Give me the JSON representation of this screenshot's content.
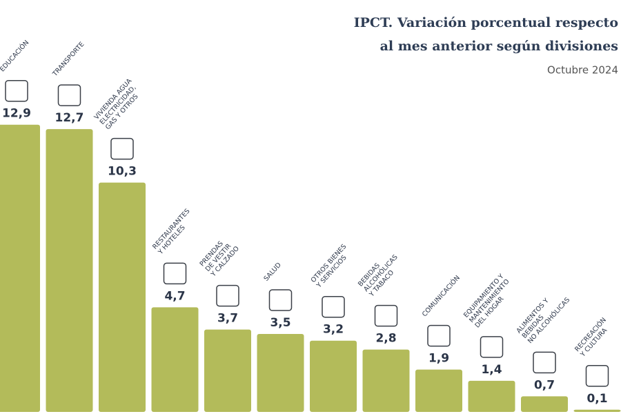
{
  "chart_data": {
    "type": "bar",
    "title_lines": [
      "IPCT. Variación porcentual respecto",
      "al mes anterior según divisiones"
    ],
    "subtitle": "Octubre 2024",
    "categories": [
      [
        "EDUCACIÓN"
      ],
      [
        "TRANSPORTE"
      ],
      [
        "VIVIENDA AGUA",
        "ELECTRICIDAD,",
        "GAS Y OTROS"
      ],
      [
        "RESTAURANTES",
        "Y HOTELES"
      ],
      [
        "PRENDAS",
        "DE VESTIR",
        "Y CALZADO"
      ],
      [
        "SALUD"
      ],
      [
        "OTROS BIENES",
        "Y SERVICIOS"
      ],
      [
        "BEBIDAS",
        "ALCOHÓLICAS",
        "Y TABACO"
      ],
      [
        "COMUNICACIÓN"
      ],
      [
        "EQUIPAMIENTO Y",
        "MANTENIMIENTO",
        "DEL HOGAR"
      ],
      [
        "ALIMENTOS Y",
        "BEBIDAS",
        "NO ALCOHÓLICAS"
      ],
      [
        "RECREACIÓN",
        "Y CULTURA"
      ]
    ],
    "values": [
      12.9,
      12.7,
      10.3,
      4.7,
      3.7,
      3.5,
      3.2,
      2.8,
      1.9,
      1.4,
      0.7,
      0.1
    ],
    "value_labels": [
      "12,9",
      "12,7",
      "10,3",
      "4,7",
      "3,7",
      "3,5",
      "3,2",
      "2,8",
      "1,9",
      "1,4",
      "0,7",
      "0,1"
    ],
    "color": "#b3bb5a",
    "ylim": [
      0,
      18.5
    ]
  }
}
